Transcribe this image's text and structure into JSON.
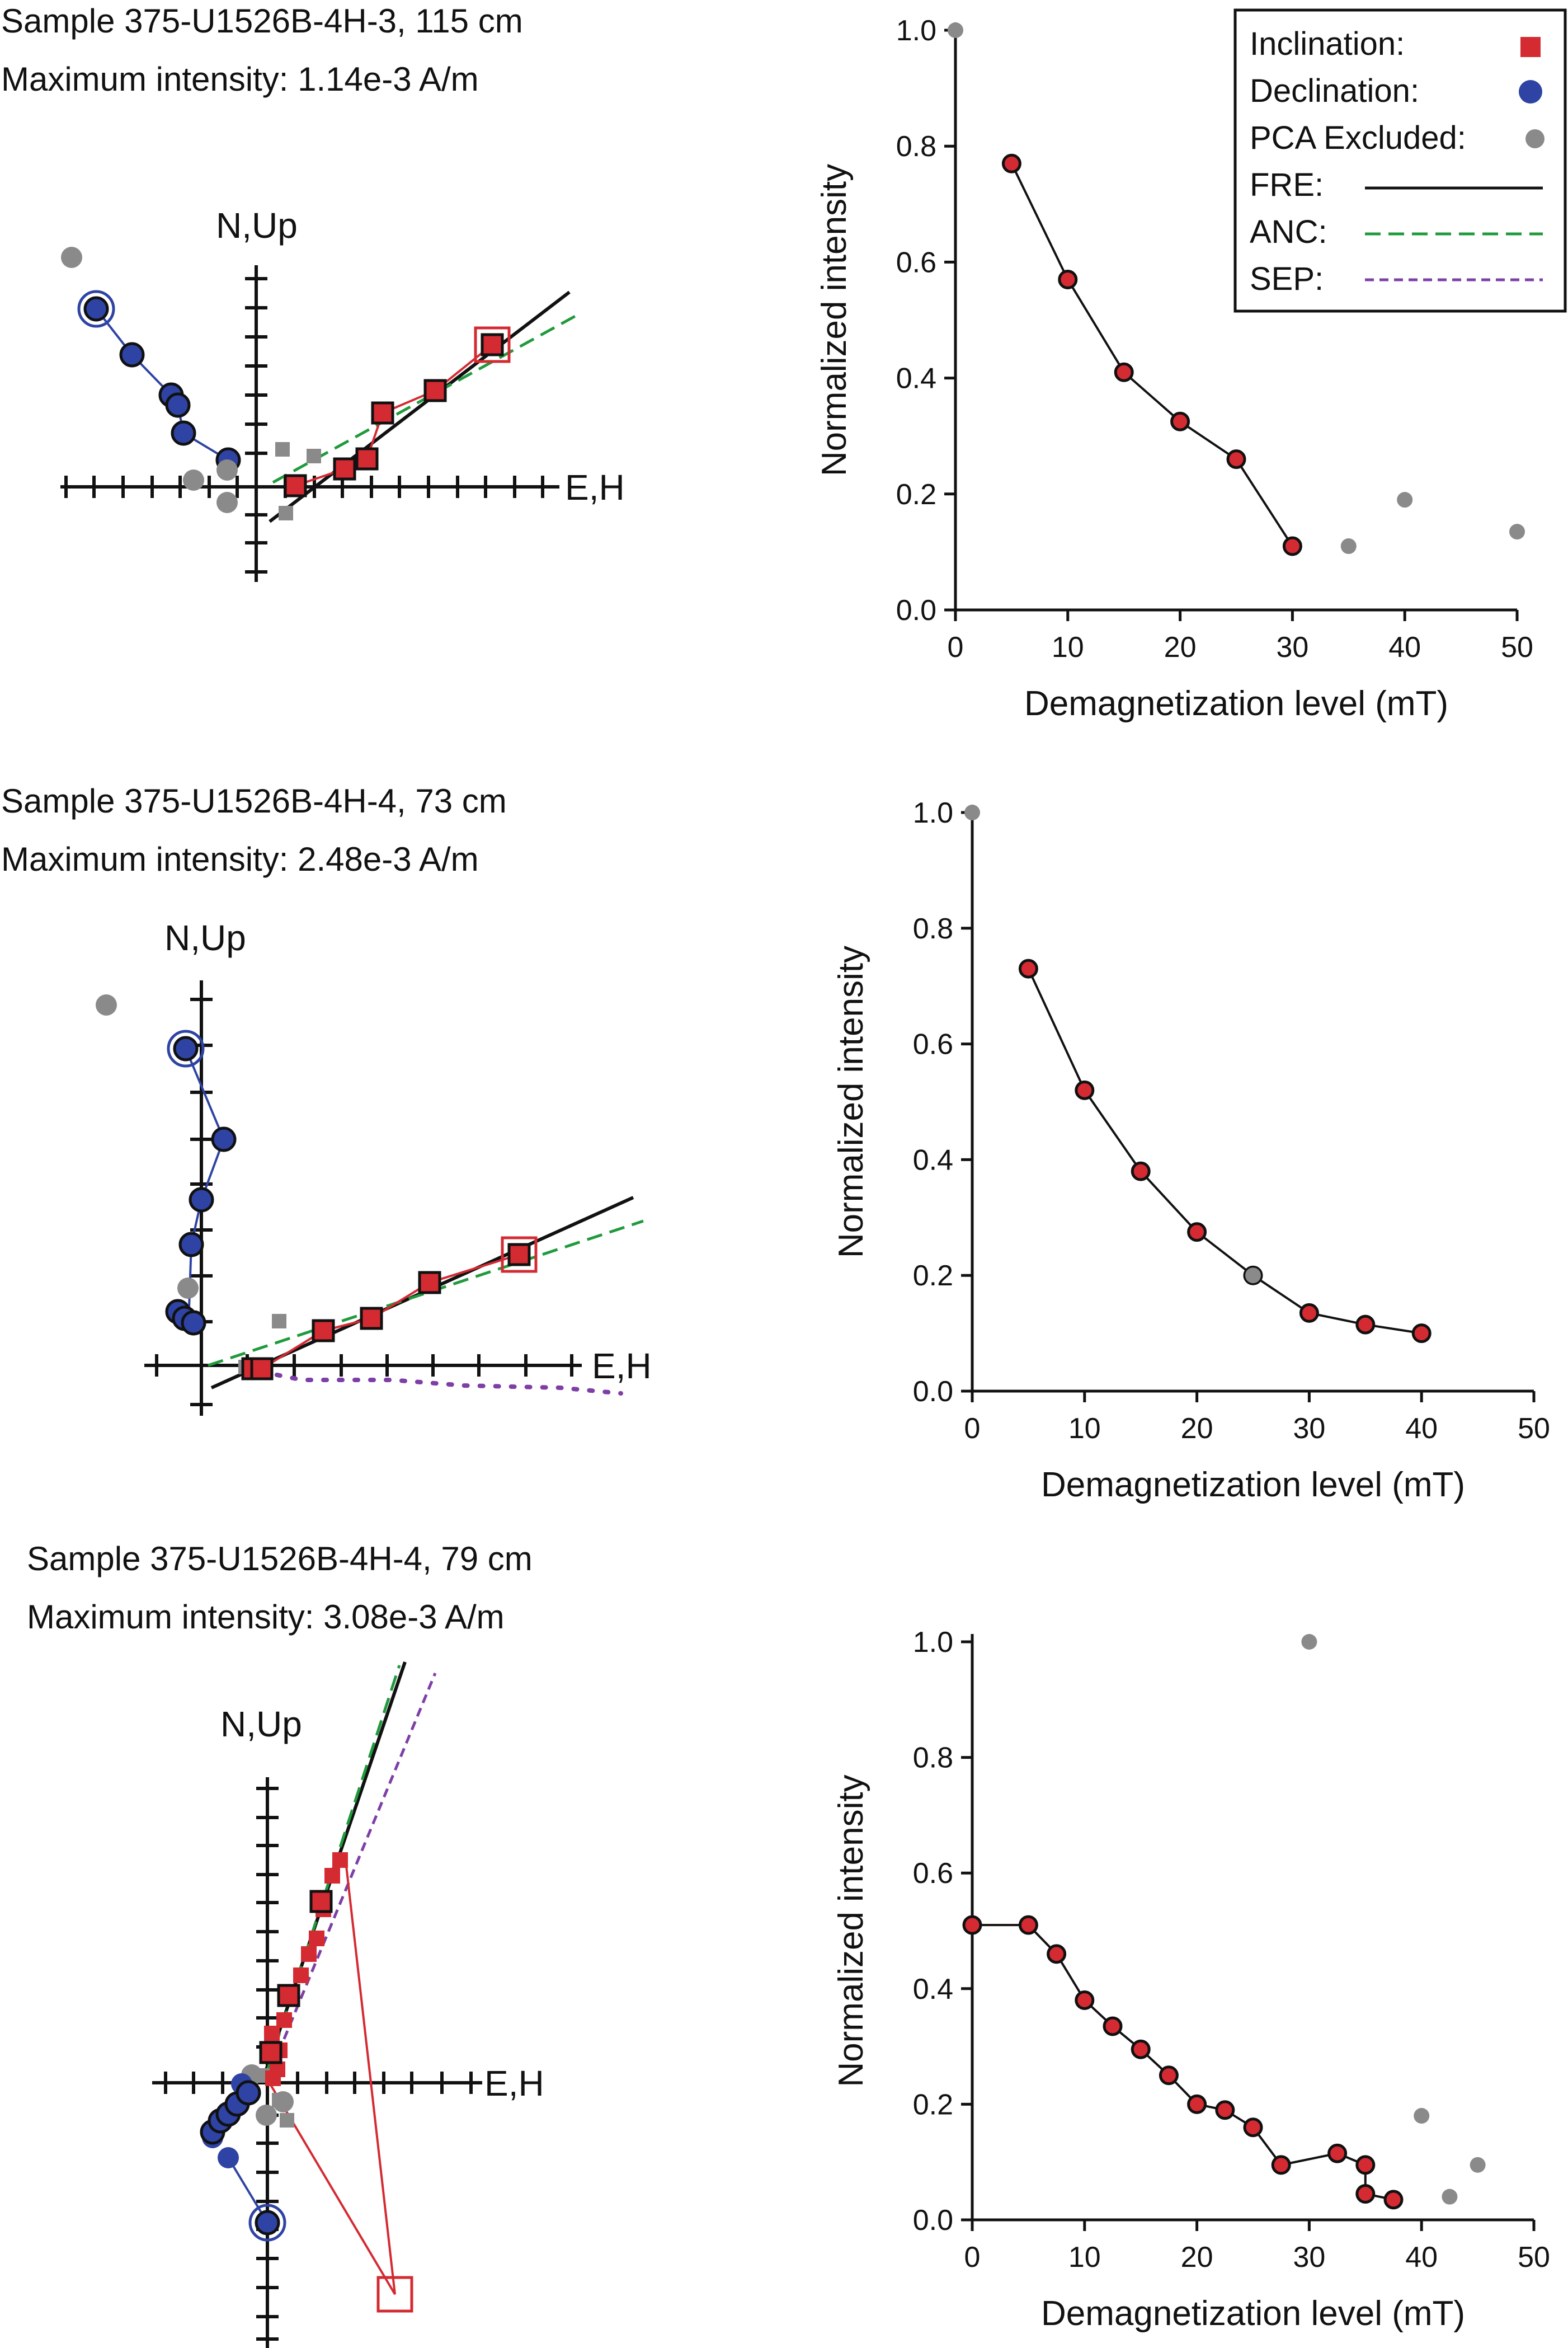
{
  "colors": {
    "inclination": "#d42a32",
    "declination": "#2e43a3",
    "excluded": "#8a8a8a",
    "fre": "#111111",
    "anc": "#1f9a3c",
    "sep": "#7d3fa6"
  },
  "legend": {
    "inclination": "Inclination:",
    "declination": "Declination:",
    "pca_excluded": "PCA Excluded:",
    "fre": "FRE:",
    "anc": "ANC:",
    "sep": "SEP:"
  },
  "zijderveld_axis_labels": {
    "vertical": "N,Up",
    "horizontal": "E,H"
  },
  "samples": [
    {
      "title": "Sample 375-U1526B-4H-3, 115 cm",
      "intensity": "Maximum intensity: 1.14e-3 A/m"
    },
    {
      "title": "Sample 375-U1526B-4H-4, 73 cm",
      "intensity": "Maximum intensity: 2.48e-3 A/m"
    },
    {
      "title": "Sample 375-U1526B-4H-4, 79 cm",
      "intensity": "Maximum intensity: 3.08e-3 A/m"
    }
  ],
  "chart_data": [
    {
      "type": "line",
      "xlabel": "Demagnetization level (mT)",
      "ylabel": "Normalized intensity",
      "xlim": [
        0,
        50
      ],
      "ylim": [
        0,
        1
      ],
      "xticks": [
        "0",
        "10",
        "20",
        "30",
        "40",
        "50"
      ],
      "yticks": [
        "0.0",
        "0.2",
        "0.4",
        "0.6",
        "0.8",
        "1.0"
      ],
      "legend_position": "top-right",
      "series": [
        {
          "name": "included",
          "style": "included",
          "points": [
            [
              5,
              0.77
            ],
            [
              10,
              0.57
            ],
            [
              15,
              0.41
            ],
            [
              20,
              0.325
            ],
            [
              25,
              0.26
            ],
            [
              30,
              0.11
            ]
          ]
        },
        {
          "name": "excluded",
          "style": "excluded",
          "points": [
            [
              0,
              1.0
            ],
            [
              35,
              0.11
            ],
            [
              40,
              0.19
            ],
            [
              50,
              0.135
            ]
          ]
        }
      ]
    },
    {
      "type": "line",
      "xlabel": "Demagnetization level (mT)",
      "ylabel": "Normalized intensity",
      "xlim": [
        0,
        50
      ],
      "ylim": [
        0,
        1
      ],
      "xticks": [
        "0",
        "10",
        "20",
        "30",
        "40",
        "50"
      ],
      "yticks": [
        "0.0",
        "0.2",
        "0.4",
        "0.6",
        "0.8",
        "1.0"
      ],
      "series": [
        {
          "name": "included",
          "style": "included",
          "points": [
            [
              5,
              0.73
            ],
            [
              10,
              0.52
            ],
            [
              15,
              0.38
            ],
            [
              20,
              0.275
            ],
            [
              25,
              0.2
            ],
            [
              30,
              0.135
            ],
            [
              35,
              0.115
            ],
            [
              40,
              0.1
            ]
          ]
        },
        {
          "name": "excluded",
          "style": "excluded",
          "points": [
            [
              0,
              1.0
            ],
            [
              25,
              0.2
            ]
          ]
        }
      ]
    },
    {
      "type": "line",
      "xlabel": "Demagnetization level (mT)",
      "ylabel": "Normalized intensity",
      "xlim": [
        0,
        50
      ],
      "ylim": [
        0,
        1
      ],
      "xticks": [
        "0",
        "10",
        "20",
        "30",
        "40",
        "50"
      ],
      "yticks": [
        "0.0",
        "0.2",
        "0.4",
        "0.6",
        "0.8",
        "1.0"
      ],
      "series": [
        {
          "name": "included",
          "style": "included",
          "points": [
            [
              0,
              0.51
            ],
            [
              5,
              0.51
            ],
            [
              7.5,
              0.46
            ],
            [
              10,
              0.38
            ],
            [
              12.5,
              0.335
            ],
            [
              15,
              0.295
            ],
            [
              17.5,
              0.25
            ],
            [
              20,
              0.2
            ],
            [
              22.5,
              0.19
            ],
            [
              25,
              0.16
            ],
            [
              27.5,
              0.095
            ],
            [
              32.5,
              0.115
            ],
            [
              35,
              0.095
            ],
            [
              35,
              0.045
            ],
            [
              37.5,
              0.035
            ]
          ]
        },
        {
          "name": "excluded",
          "style": "excluded",
          "points": [
            [
              30,
              1.0
            ],
            [
              40,
              0.18
            ],
            [
              42.5,
              0.04
            ],
            [
              45,
              0.095
            ]
          ]
        }
      ]
    }
  ]
}
